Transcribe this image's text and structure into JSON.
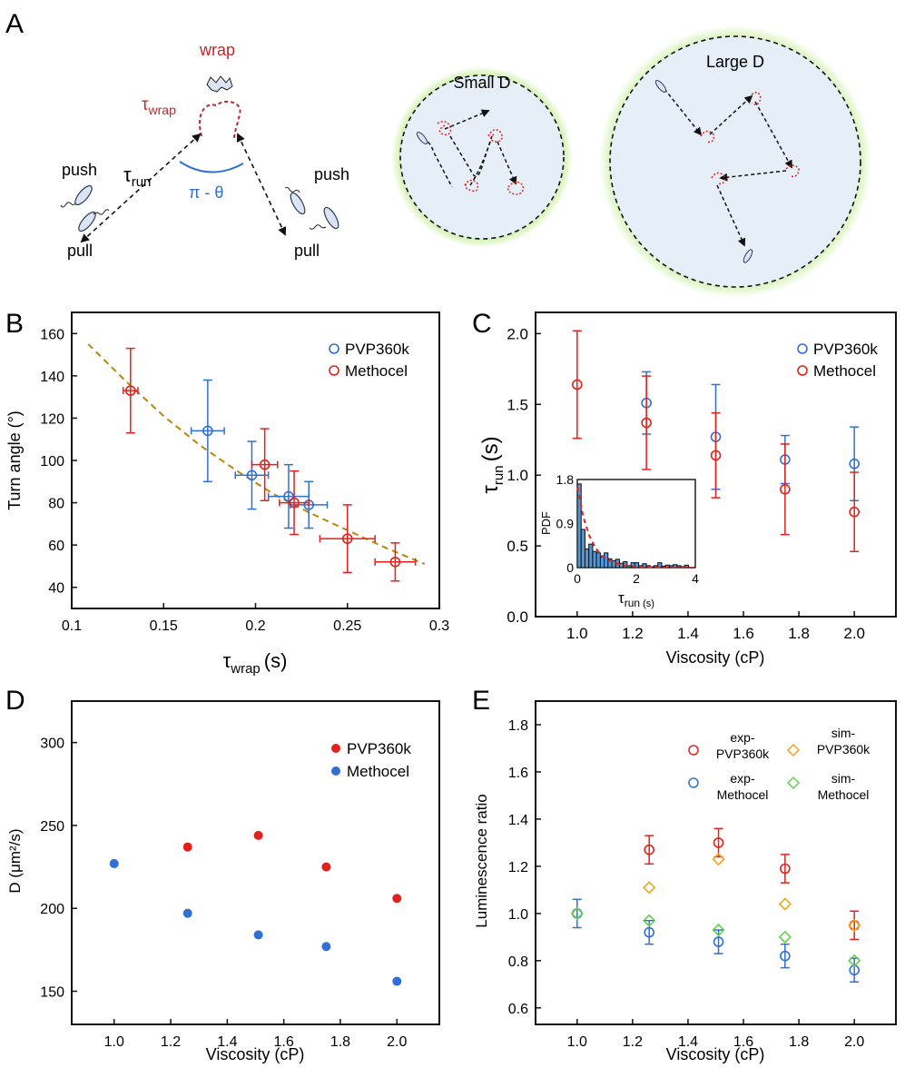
{
  "figure": {
    "panel_labels": [
      "A",
      "B",
      "C",
      "D",
      "E"
    ],
    "colors": {
      "red": "#e3211c",
      "blue": "#2f6fd6",
      "olive": "#b8860b",
      "green_glow": "#a8e463",
      "cell_fill": "#e6eef8",
      "dark_red": "#c0282d"
    },
    "schematic": {
      "wrap_label": "wrap",
      "tau_wrap": "τ",
      "tau_wrap_sub": "wrap",
      "tau_run": "τ",
      "tau_run_sub": "run",
      "angle_label": "π - θ",
      "push_left": "push",
      "pull_left": "pull",
      "push_right": "push",
      "pull_right": "pull",
      "small_d": "Small D",
      "large_d": "Large D"
    }
  },
  "chart_data": [
    {
      "panel": "B",
      "type": "scatter",
      "xlabel_symbol": "τ",
      "xlabel_sub": "wrap",
      "xlabel_unit": "(s)",
      "ylabel": "Turn angle (°)",
      "xlim": [
        0.1,
        0.3
      ],
      "ylim": [
        30,
        170
      ],
      "xticks": [
        "0.1",
        "0.15",
        "0.2",
        "0.25",
        "0.3"
      ],
      "yticks": [
        "40",
        "60",
        "80",
        "100",
        "120",
        "140",
        "160"
      ],
      "legend": [
        "PVP360k",
        "Methocel"
      ],
      "series": [
        {
          "name": "PVP360k",
          "color": "#2f6fd6",
          "points": [
            {
              "x": 0.174,
              "y": 114,
              "xerr": 0.009,
              "yerr": 24
            },
            {
              "x": 0.198,
              "y": 93,
              "xerr": 0.009,
              "yerr": 16
            },
            {
              "x": 0.218,
              "y": 83,
              "xerr": 0.011,
              "yerr": 15
            },
            {
              "x": 0.229,
              "y": 79,
              "xerr": 0.01,
              "yerr": 11
            }
          ]
        },
        {
          "name": "Methocel",
          "color": "#e3211c",
          "points": [
            {
              "x": 0.132,
              "y": 133,
              "xerr": 0.004,
              "yerr": 20
            },
            {
              "x": 0.205,
              "y": 98,
              "xerr": 0.007,
              "yerr": 17
            },
            {
              "x": 0.221,
              "y": 80,
              "xerr": 0.008,
              "yerr": 15
            },
            {
              "x": 0.25,
              "y": 63,
              "xerr": 0.015,
              "yerr": 16
            },
            {
              "x": 0.276,
              "y": 52,
              "xerr": 0.011,
              "yerr": 9
            }
          ]
        }
      ],
      "fit": {
        "style": "dashed",
        "color": "#b8860b",
        "x": [
          0.109,
          0.13,
          0.15,
          0.17,
          0.19,
          0.21,
          0.23,
          0.25,
          0.27,
          0.292
        ],
        "y": [
          155,
          137,
          121,
          107,
          95,
          84,
          75,
          67,
          59,
          51
        ]
      }
    },
    {
      "panel": "C",
      "type": "scatter",
      "xlabel": "Viscosity (cP)",
      "ylabel_symbol": "τ",
      "ylabel_sub": "run",
      "ylabel_unit": "(s)",
      "xlim": [
        0.85,
        2.15
      ],
      "ylim": [
        0,
        2.15
      ],
      "xticks": [
        "1.0",
        "1.2",
        "1.4",
        "1.6",
        "1.8",
        "2.0"
      ],
      "yticks": [
        "0.0",
        "0.5",
        "1.0",
        "1.5",
        "2.0"
      ],
      "legend": [
        "PVP360k",
        "Methocel"
      ],
      "series": [
        {
          "name": "PVP360k",
          "color": "#2f6fd6",
          "x": [
            1.25,
            1.5,
            1.75,
            2.0
          ],
          "y": [
            1.51,
            1.27,
            1.11,
            1.08
          ],
          "yerr": [
            0.22,
            0.37,
            0.17,
            0.26
          ]
        },
        {
          "name": "Methocel",
          "color": "#e3211c",
          "x": [
            1.0,
            1.25,
            1.5,
            1.75,
            2.0
          ],
          "y": [
            1.64,
            1.37,
            1.14,
            0.9,
            0.74
          ],
          "yerr": [
            0.38,
            0.33,
            0.3,
            0.32,
            0.28
          ]
        }
      ],
      "inset": {
        "type": "bar",
        "ylabel": "PDF",
        "xlabel_symbol": "τ",
        "xlabel_sub": "run",
        "xlabel_unit": "(s)",
        "xlim": [
          0,
          4
        ],
        "ylim": [
          0,
          1.8
        ],
        "xticks": [
          "0",
          "2",
          "4"
        ],
        "yticks": [
          "0",
          "0.9",
          "1.8"
        ],
        "bin_width": 0.13,
        "bin_starts": [
          0,
          0.13,
          0.26,
          0.39,
          0.52,
          0.65,
          0.78,
          0.91,
          1.04,
          1.17,
          1.3,
          1.43,
          1.56,
          1.69,
          1.82,
          1.95,
          2.08,
          2.21,
          2.34,
          2.47,
          2.6,
          2.73,
          2.86,
          2.99,
          3.12,
          3.25,
          3.38,
          3.51,
          3.64
        ],
        "values": [
          1.71,
          0.78,
          0.38,
          0.48,
          0.33,
          0.3,
          0.22,
          0.3,
          0.18,
          0.14,
          0.17,
          0.09,
          0.12,
          0.04,
          0.1,
          0.1,
          0.04,
          0.08,
          0.04,
          0.02,
          0.04,
          0.1,
          0.03,
          0.05,
          0.04,
          0.06,
          0.04,
          0.02,
          0.05
        ],
        "fit": {
          "style": "dashed",
          "color": "#e3211c",
          "x": [
            0,
            0.2,
            0.4,
            0.6,
            0.8,
            1.0,
            1.3,
            1.6,
            2.0,
            2.5,
            3.0,
            3.5,
            4.0
          ],
          "y": [
            1.65,
            1.04,
            0.66,
            0.42,
            0.26,
            0.17,
            0.09,
            0.04,
            0.02,
            0.01,
            0.0,
            0.0,
            0.0
          ]
        }
      }
    },
    {
      "panel": "D",
      "type": "scatter",
      "xlabel": "Viscosity (cP)",
      "ylabel": "D (μm²/s)",
      "xlim": [
        0.85,
        2.15
      ],
      "ylim": [
        130,
        325
      ],
      "xticks": [
        "1.0",
        "1.2",
        "1.4",
        "1.6",
        "1.8",
        "2.0"
      ],
      "yticks": [
        "150",
        "200",
        "250",
        "300"
      ],
      "legend": [
        "PVP360k",
        "Methocel"
      ],
      "series": [
        {
          "name": "PVP360k",
          "color": "#e3211c",
          "x": [
            1.26,
            1.51,
            1.75,
            2.0
          ],
          "y": [
            237,
            244,
            225,
            206
          ]
        },
        {
          "name": "Methocel",
          "color": "#2f6fd6",
          "x": [
            1.0,
            1.26,
            1.51,
            1.75,
            2.0
          ],
          "y": [
            227,
            197,
            184,
            177,
            156
          ]
        }
      ]
    },
    {
      "panel": "E",
      "type": "scatter",
      "xlabel": "Viscosity (cP)",
      "ylabel": "Luminescence ratio",
      "xlim": [
        0.85,
        2.15
      ],
      "ylim": [
        0.53,
        1.9
      ],
      "xticks": [
        "1.0",
        "1.2",
        "1.4",
        "1.6",
        "1.8",
        "2.0"
      ],
      "yticks": [
        "0.6",
        "0.8",
        "1.0",
        "1.2",
        "1.4",
        "1.6",
        "1.8"
      ],
      "legend": [
        {
          "line1": "exp-",
          "line2": "PVP360k",
          "color": "#e3211c",
          "marker": "circle"
        },
        {
          "line1": "exp-",
          "line2": "Methocel",
          "color": "#2f6fd6",
          "marker": "circle"
        },
        {
          "line1": "sim-",
          "line2": "PVP360k",
          "color": "#f2a516",
          "marker": "diamond"
        },
        {
          "line1": "sim-",
          "line2": "Methocel",
          "color": "#62d24d",
          "marker": "diamond"
        }
      ],
      "series": [
        {
          "name": "exp-PVP360k",
          "color": "#e3211c",
          "marker": "circle",
          "x": [
            1.26,
            1.51,
            1.75,
            2.0
          ],
          "y": [
            1.27,
            1.3,
            1.19,
            0.95
          ],
          "yerr": [
            0.06,
            0.06,
            0.06,
            0.06
          ]
        },
        {
          "name": "exp-Methocel",
          "color": "#2f6fd6",
          "marker": "circle",
          "x": [
            1.0,
            1.26,
            1.51,
            1.75,
            2.0
          ],
          "y": [
            1.0,
            0.92,
            0.88,
            0.82,
            0.76
          ],
          "yerr": [
            0.06,
            0.05,
            0.05,
            0.05,
            0.05
          ]
        },
        {
          "name": "sim-PVP360k",
          "color": "#f2a516",
          "marker": "diamond",
          "x": [
            1.26,
            1.51,
            1.75,
            2.0
          ],
          "y": [
            1.11,
            1.23,
            1.04,
            0.95
          ]
        },
        {
          "name": "sim-Methocel",
          "color": "#62d24d",
          "marker": "diamond",
          "x": [
            1.0,
            1.26,
            1.51,
            1.75,
            2.0
          ],
          "y": [
            1.0,
            0.97,
            0.93,
            0.9,
            0.8
          ]
        }
      ]
    }
  ]
}
